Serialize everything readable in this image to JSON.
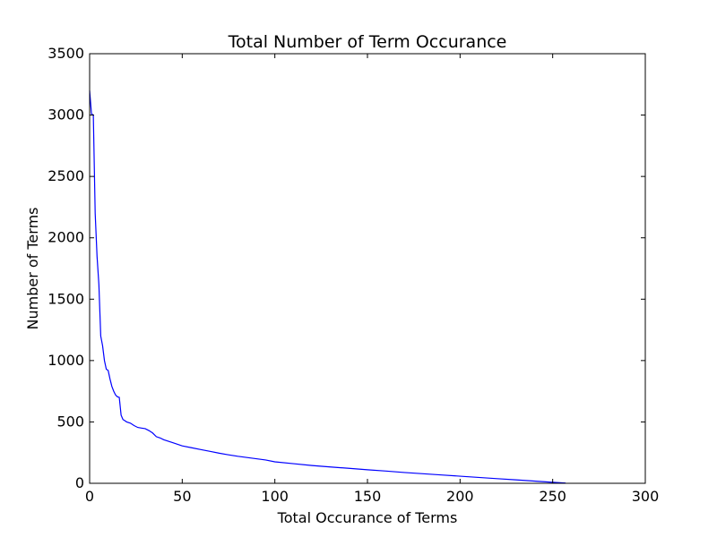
{
  "chart_data": {
    "type": "line",
    "title": "Total Number of Term Occurance",
    "xlabel": "Total Occurance of Terms",
    "ylabel": "Number of Terms",
    "xlim": [
      0,
      300
    ],
    "ylim": [
      0,
      3500
    ],
    "xticks": [
      "0",
      "50",
      "100",
      "150",
      "200",
      "250",
      "300"
    ],
    "yticks": [
      "0",
      "500",
      "1000",
      "1500",
      "2000",
      "2500",
      "3000",
      "3500"
    ],
    "grid": false,
    "legend": "none",
    "line_color": "#0000ff",
    "series": [
      {
        "x": [
          0,
          1,
          2,
          3,
          4,
          5,
          6,
          7,
          8,
          9,
          10,
          11,
          12,
          13,
          14,
          15,
          16,
          17,
          18,
          19,
          20,
          22,
          24,
          26,
          28,
          30,
          32,
          34,
          36,
          38,
          40,
          45,
          50,
          55,
          60,
          65,
          70,
          75,
          80,
          85,
          90,
          95,
          100,
          110,
          120,
          130,
          140,
          150,
          160,
          170,
          180,
          190,
          200,
          210,
          220,
          230,
          240,
          250,
          257
        ],
        "y": [
          3200,
          3010,
          3000,
          2200,
          1850,
          1620,
          1200,
          1120,
          1000,
          930,
          920,
          850,
          790,
          750,
          720,
          705,
          700,
          555,
          520,
          510,
          500,
          490,
          470,
          455,
          450,
          445,
          430,
          410,
          380,
          370,
          355,
          330,
          305,
          290,
          275,
          260,
          245,
          232,
          220,
          210,
          200,
          190,
          175,
          160,
          145,
          133,
          122,
          110,
          100,
          88,
          78,
          68,
          58,
          48,
          38,
          28,
          18,
          8,
          2
        ]
      }
    ]
  }
}
